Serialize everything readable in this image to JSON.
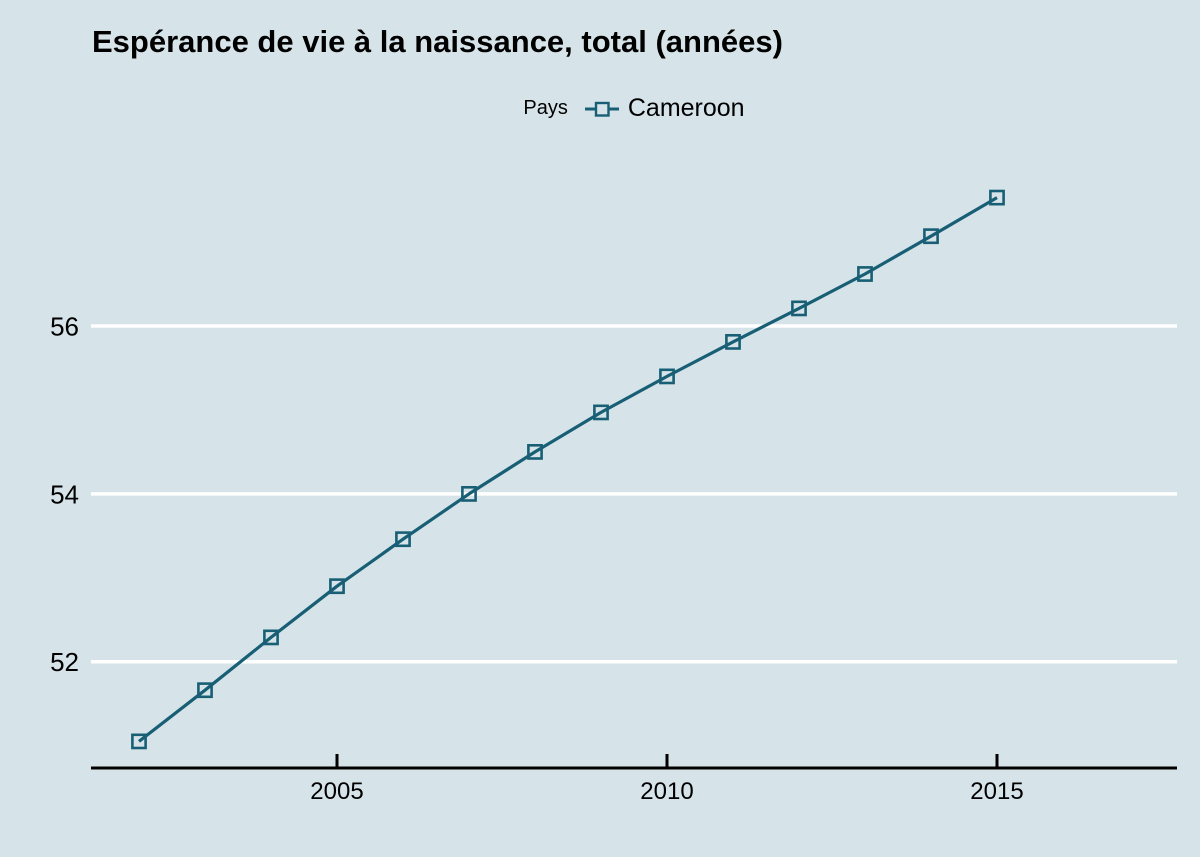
{
  "chart_data": {
    "type": "line",
    "title": "Espérance de vie à la naissance, total (années)",
    "legend": {
      "title": "Pays",
      "series": "Cameroon",
      "position": "top-center"
    },
    "series": [
      {
        "name": "Cameroon",
        "x": [
          2002,
          2003,
          2004,
          2005,
          2006,
          2007,
          2008,
          2009,
          2010,
          2011,
          2012,
          2013,
          2014,
          2015
        ],
        "values": [
          51.05,
          51.66,
          52.29,
          52.9,
          53.46,
          54.0,
          54.5,
          54.97,
          55.4,
          55.81,
          56.21,
          56.62,
          57.07,
          57.53
        ]
      }
    ],
    "xlabel": "",
    "ylabel": "",
    "x_ticks": [
      2005,
      2010,
      2015
    ],
    "y_ticks": [
      52,
      54,
      56
    ],
    "xlim": [
      2001.3,
      2017.7
    ],
    "ylim": [
      50.7,
      58.1
    ],
    "grid": "horizontal-white-lines",
    "marker": "open-square",
    "colors": {
      "background": "#d6e4e9",
      "series": "#185f75",
      "grid": "#ffffff",
      "axis": "#000000",
      "text": "#000000"
    }
  }
}
